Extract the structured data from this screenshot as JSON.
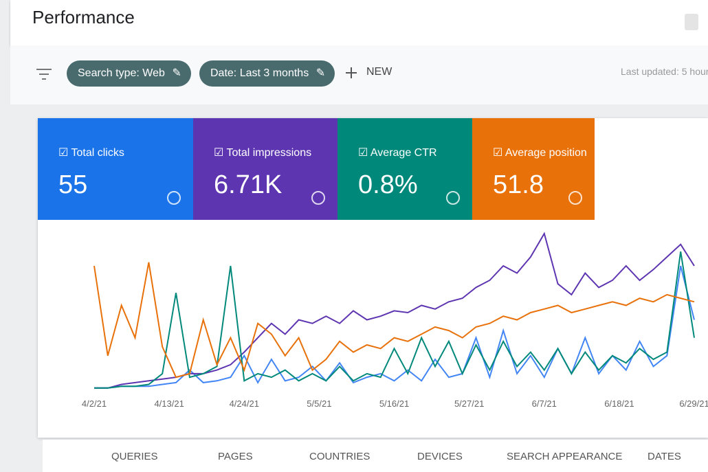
{
  "header": {
    "title": "Performance"
  },
  "toolbar": {
    "chips": [
      "Search type: Web",
      "Date: Last 3 months"
    ],
    "new": "NEW",
    "last_updated": "Last updated: 5 hour"
  },
  "metrics": [
    {
      "label": "Total clicks",
      "value": "55",
      "color": "#1a73e8"
    },
    {
      "label": "Total impressions",
      "value": "6.71K",
      "color": "#5e35b1"
    },
    {
      "label": "Average CTR",
      "value": "0.8%",
      "color": "#00897b"
    },
    {
      "label": "Average position",
      "value": "51.8",
      "color": "#e8710a"
    }
  ],
  "chart": {
    "type": "line",
    "x_labels": [
      "4/2/21",
      "4/13/21",
      "4/24/21",
      "5/5/21",
      "5/16/21",
      "5/27/21",
      "6/7/21",
      "6/18/21",
      "6/29/21"
    ],
    "series": [
      {
        "color": "#4285f4",
        "values": [
          2,
          2,
          3,
          3,
          3,
          4,
          5,
          12,
          5,
          6,
          8,
          20,
          5,
          18,
          6,
          8,
          14,
          6,
          16,
          5,
          8,
          10,
          6,
          12,
          6,
          18,
          8,
          10,
          30,
          8,
          34,
          10,
          20,
          8,
          24,
          10,
          30,
          10,
          20,
          12,
          28,
          14,
          20,
          70,
          40
        ]
      },
      {
        "color": "#5e35b1",
        "values": [
          2,
          2,
          4,
          5,
          6,
          7,
          8,
          10,
          10,
          12,
          15,
          22,
          30,
          38,
          32,
          40,
          38,
          42,
          38,
          45,
          40,
          42,
          45,
          44,
          48,
          46,
          50,
          52,
          58,
          62,
          70,
          66,
          75,
          88,
          60,
          54,
          66,
          58,
          62,
          70,
          62,
          68,
          75,
          82,
          70
        ]
      },
      {
        "color": "#00897b",
        "values": [
          2,
          2,
          3,
          3,
          4,
          10,
          55,
          8,
          10,
          14,
          70,
          6,
          10,
          8,
          12,
          6,
          10,
          6,
          14,
          6,
          10,
          8,
          24,
          10,
          30,
          14,
          28,
          10,
          26,
          12,
          28,
          14,
          22,
          12,
          24,
          10,
          22,
          12,
          20,
          16,
          24,
          18,
          22,
          78,
          30
        ]
      },
      {
        "color": "#e8710a",
        "values": [
          70,
          20,
          48,
          30,
          72,
          25,
          8,
          10,
          40,
          15,
          30,
          12,
          38,
          32,
          20,
          30,
          12,
          18,
          28,
          22,
          26,
          24,
          30,
          28,
          32,
          36,
          34,
          30,
          36,
          38,
          42,
          40,
          44,
          46,
          48,
          44,
          46,
          48,
          50,
          48,
          52,
          50,
          54,
          52,
          50
        ]
      }
    ]
  },
  "tabs": [
    "QUERIES",
    "PAGES",
    "COUNTRIES",
    "DEVICES",
    "SEARCH APPEARANCE",
    "DATES"
  ]
}
